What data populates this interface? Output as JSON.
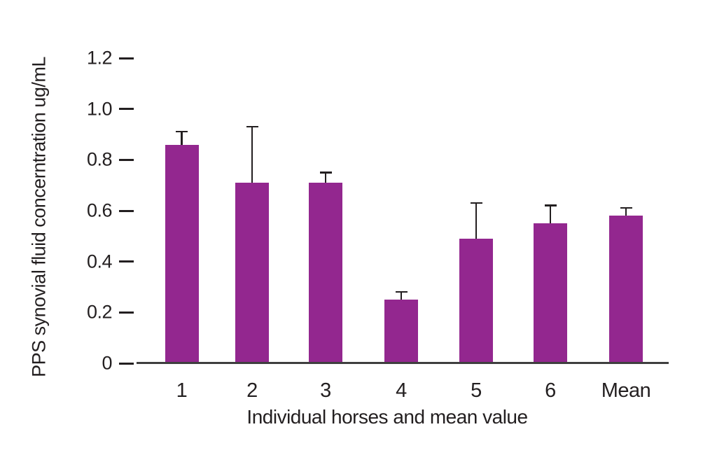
{
  "figure": {
    "background": "#FFFFFF"
  },
  "chart_data": {
    "type": "bar",
    "title": "",
    "xlabel": "Individual horses and mean value",
    "ylabel": "PPS synovial fluid concerntration ug/mL",
    "categories": [
      "1",
      "2",
      "3",
      "4",
      "5",
      "6",
      "Mean"
    ],
    "values": [
      0.86,
      0.71,
      0.71,
      0.25,
      0.49,
      0.55,
      0.58
    ],
    "error_upper": [
      0.05,
      0.22,
      0.04,
      0.03,
      0.14,
      0.07,
      0.03
    ],
    "yticks": [
      1.2,
      1.0,
      0.8,
      0.6,
      0.4,
      0.2,
      0
    ],
    "ytick_labels": [
      "1.2",
      "1.0",
      "0.8",
      "0.6",
      "0.4",
      "0.2",
      "0"
    ],
    "ylim": [
      0,
      1.2
    ],
    "grid": false,
    "legend": false,
    "bar_color": "#93278F",
    "axis_color": "#3F3F3F",
    "text_color": "#231F20",
    "error_bar_color": "#231F20"
  }
}
